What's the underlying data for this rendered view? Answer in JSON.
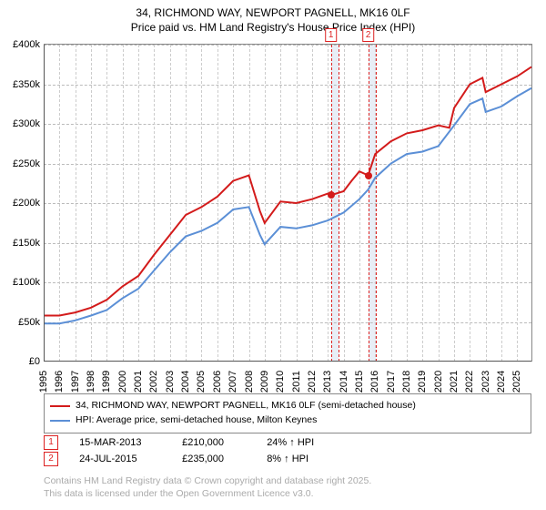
{
  "title_line1": "34, RICHMOND WAY, NEWPORT PAGNELL, MK16 0LF",
  "title_line2": "Price paid vs. HM Land Registry's House Price Index (HPI)",
  "chart": {
    "type": "line",
    "xlim": [
      1995,
      2025.9
    ],
    "ylim": [
      0,
      400000
    ],
    "ytick_step": 50000,
    "xtick_step": 1,
    "background_color": "#ffffff",
    "grid_color_h": "#bbbbbb",
    "grid_color_v": "#cccccc",
    "axis_color": "#555555",
    "y_ticks": [
      "£0",
      "£50k",
      "£100k",
      "£150k",
      "£200k",
      "£250k",
      "£300k",
      "£350k",
      "£400k"
    ],
    "x_ticks": [
      "1995",
      "1996",
      "1997",
      "1998",
      "1999",
      "2000",
      "2001",
      "2002",
      "2003",
      "2004",
      "2005",
      "2006",
      "2007",
      "2008",
      "2009",
      "2010",
      "2011",
      "2012",
      "2013",
      "2014",
      "2015",
      "2016",
      "2017",
      "2018",
      "2019",
      "2020",
      "2021",
      "2022",
      "2023",
      "2024",
      "2025"
    ],
    "series": [
      {
        "name": "price_paid",
        "color": "#d31b1b",
        "width": 2,
        "legend": "34, RICHMOND WAY, NEWPORT PAGNELL, MK16 0LF (semi-detached house)",
        "data": [
          [
            1995,
            58000
          ],
          [
            1996,
            58000
          ],
          [
            1997,
            62000
          ],
          [
            1998,
            68000
          ],
          [
            1999,
            78000
          ],
          [
            2000,
            95000
          ],
          [
            2001,
            108000
          ],
          [
            2002,
            135000
          ],
          [
            2003,
            160000
          ],
          [
            2004,
            185000
          ],
          [
            2005,
            195000
          ],
          [
            2006,
            208000
          ],
          [
            2007,
            228000
          ],
          [
            2008,
            235000
          ],
          [
            2008.7,
            190000
          ],
          [
            2009,
            175000
          ],
          [
            2010,
            202000
          ],
          [
            2011,
            200000
          ],
          [
            2012,
            205000
          ],
          [
            2013,
            212000
          ],
          [
            2013.2,
            210000
          ],
          [
            2014,
            215000
          ],
          [
            2014.5,
            228000
          ],
          [
            2015,
            240000
          ],
          [
            2015.56,
            235000
          ],
          [
            2016,
            262000
          ],
          [
            2017,
            278000
          ],
          [
            2018,
            288000
          ],
          [
            2019,
            292000
          ],
          [
            2020,
            298000
          ],
          [
            2020.7,
            295000
          ],
          [
            2021,
            320000
          ],
          [
            2022,
            350000
          ],
          [
            2022.8,
            358000
          ],
          [
            2023,
            340000
          ],
          [
            2024,
            350000
          ],
          [
            2025,
            360000
          ],
          [
            2025.9,
            372000
          ]
        ]
      },
      {
        "name": "hpi",
        "color": "#5b8fd6",
        "width": 2,
        "legend": "HPI: Average price, semi-detached house, Milton Keynes",
        "data": [
          [
            1995,
            48000
          ],
          [
            1996,
            48000
          ],
          [
            1997,
            52000
          ],
          [
            1998,
            58000
          ],
          [
            1999,
            65000
          ],
          [
            2000,
            80000
          ],
          [
            2001,
            92000
          ],
          [
            2002,
            115000
          ],
          [
            2003,
            138000
          ],
          [
            2004,
            158000
          ],
          [
            2005,
            165000
          ],
          [
            2006,
            175000
          ],
          [
            2007,
            192000
          ],
          [
            2008,
            195000
          ],
          [
            2008.7,
            160000
          ],
          [
            2009,
            148000
          ],
          [
            2010,
            170000
          ],
          [
            2011,
            168000
          ],
          [
            2012,
            172000
          ],
          [
            2013,
            178000
          ],
          [
            2014,
            188000
          ],
          [
            2015,
            205000
          ],
          [
            2015.56,
            217000
          ],
          [
            2016,
            232000
          ],
          [
            2017,
            250000
          ],
          [
            2018,
            262000
          ],
          [
            2019,
            265000
          ],
          [
            2020,
            272000
          ],
          [
            2021,
            298000
          ],
          [
            2022,
            325000
          ],
          [
            2022.8,
            332000
          ],
          [
            2023,
            315000
          ],
          [
            2024,
            322000
          ],
          [
            2025,
            335000
          ],
          [
            2025.9,
            345000
          ]
        ]
      }
    ],
    "sale_markers": [
      {
        "x": 2013.2,
        "y": 210000,
        "color": "#d31b1b"
      },
      {
        "x": 2015.56,
        "y": 235000,
        "color": "#d31b1b"
      }
    ],
    "marker_bands": [
      {
        "label": "1",
        "x": 2013.2,
        "band_width_years": 0.5,
        "edge_color": "#d22",
        "band_color": "#e8eef6"
      },
      {
        "label": "2",
        "x": 2015.56,
        "band_width_years": 0.5,
        "edge_color": "#d22",
        "band_color": "#e8eef6"
      }
    ]
  },
  "trades": [
    {
      "num": "1",
      "date": "15-MAR-2013",
      "price": "£210,000",
      "pct": "24% ↑ HPI"
    },
    {
      "num": "2",
      "date": "24-JUL-2015",
      "price": "£235,000",
      "pct": "8% ↑ HPI"
    }
  ],
  "footer_line1": "Contains HM Land Registry data © Crown copyright and database right 2025.",
  "footer_line2": "This data is licensed under the Open Government Licence v3.0."
}
